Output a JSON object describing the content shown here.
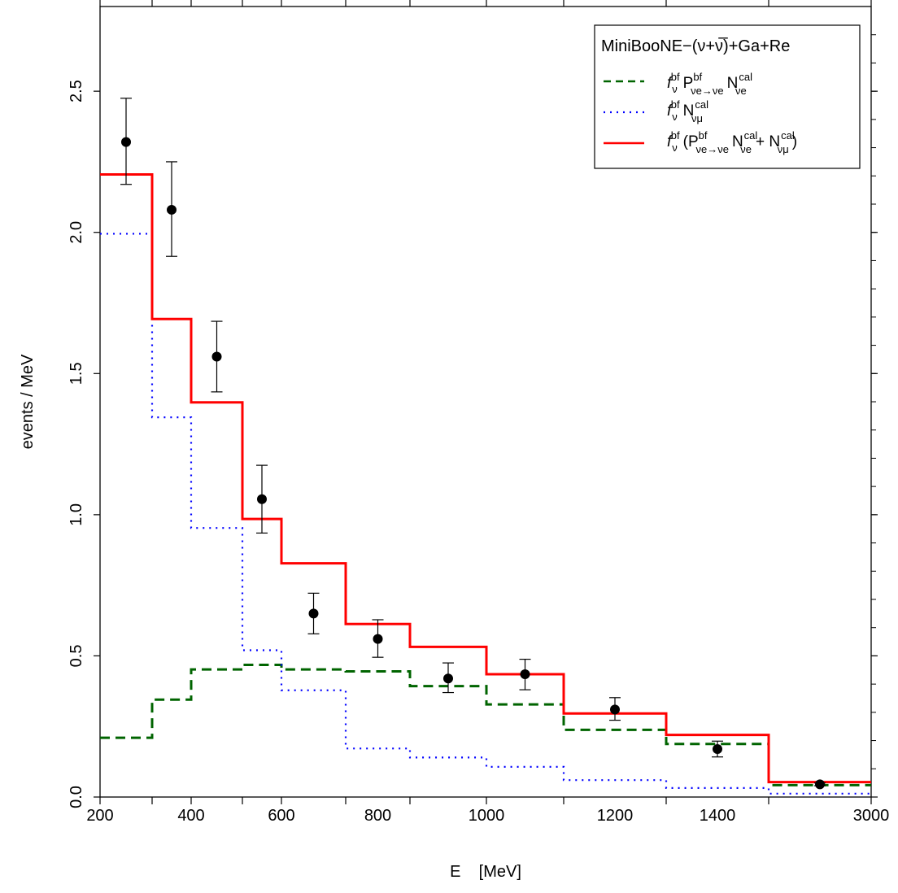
{
  "chart_data": {
    "type": "step",
    "title": "",
    "xlabel": "E    [MeV]",
    "ylabel": "events / MeV",
    "ylim": [
      0,
      2.8
    ],
    "x_tick_labels": [
      "200",
      "400",
      "600",
      "800",
      "1000",
      "1200",
      "1400",
      "3000"
    ],
    "y_tick_labels": [
      "0.0",
      "0.5",
      "1.0",
      "1.5",
      "2.0",
      "2.5"
    ],
    "y_tick_values": [
      0,
      0.5,
      1.0,
      1.5,
      2.0,
      2.5
    ],
    "bin_edges_mev": [
      200,
      300,
      375,
      475,
      550,
      675,
      800,
      950,
      1100,
      1300,
      1500,
      3000
    ],
    "legend": {
      "position": "top-right",
      "title": "MiniBooNE−(ν+ν̅)+Ga+Re"
    },
    "series": [
      {
        "key": "nue",
        "label": "f_ν^bf P^bf_(ν_e→ν_e) N^cal_(ν_e)",
        "style": "dashed",
        "color": "#006400",
        "values": [
          0.21,
          0.345,
          0.452,
          0.468,
          0.452,
          0.445,
          0.393,
          0.328,
          0.238,
          0.188,
          0.042
        ]
      },
      {
        "key": "numu",
        "label": "f_ν^bf N^cal_(ν_μ)",
        "style": "dotted",
        "color": "#0000ff",
        "values": [
          1.995,
          1.345,
          0.953,
          0.52,
          0.378,
          0.172,
          0.14,
          0.107,
          0.06,
          0.032,
          0.012
        ]
      },
      {
        "key": "total",
        "label": "f_ν^bf (P^bf_(ν_e→ν_e) N^cal_(ν_e) + N^cal_(ν_μ))",
        "style": "solid",
        "color": "#ff0000",
        "values": [
          2.205,
          1.693,
          1.398,
          0.985,
          0.828,
          0.613,
          0.532,
          0.435,
          0.296,
          0.22,
          0.053
        ]
      }
    ],
    "data_points": [
      {
        "bin": 0,
        "y": 2.32,
        "err": [
          2.17,
          2.475
        ]
      },
      {
        "bin": 1,
        "y": 2.08,
        "err": [
          1.915,
          2.25
        ]
      },
      {
        "bin": 2,
        "y": 1.56,
        "err": [
          1.435,
          1.685
        ]
      },
      {
        "bin": 3,
        "y": 1.055,
        "err": [
          0.935,
          1.175
        ]
      },
      {
        "bin": 4,
        "y": 0.65,
        "err": [
          0.578,
          0.722
        ]
      },
      {
        "bin": 5,
        "y": 0.56,
        "err": [
          0.495,
          0.628
        ]
      },
      {
        "bin": 6,
        "y": 0.42,
        "err": [
          0.37,
          0.475
        ]
      },
      {
        "bin": 7,
        "y": 0.435,
        "err": [
          0.38,
          0.488
        ]
      },
      {
        "bin": 8,
        "y": 0.31,
        "err": [
          0.272,
          0.352
        ]
      },
      {
        "bin": 9,
        "y": 0.17,
        "err": [
          0.142,
          0.198
        ]
      },
      {
        "bin": 10,
        "y": 0.045,
        "err": [
          0.04,
          0.05
        ]
      }
    ]
  }
}
